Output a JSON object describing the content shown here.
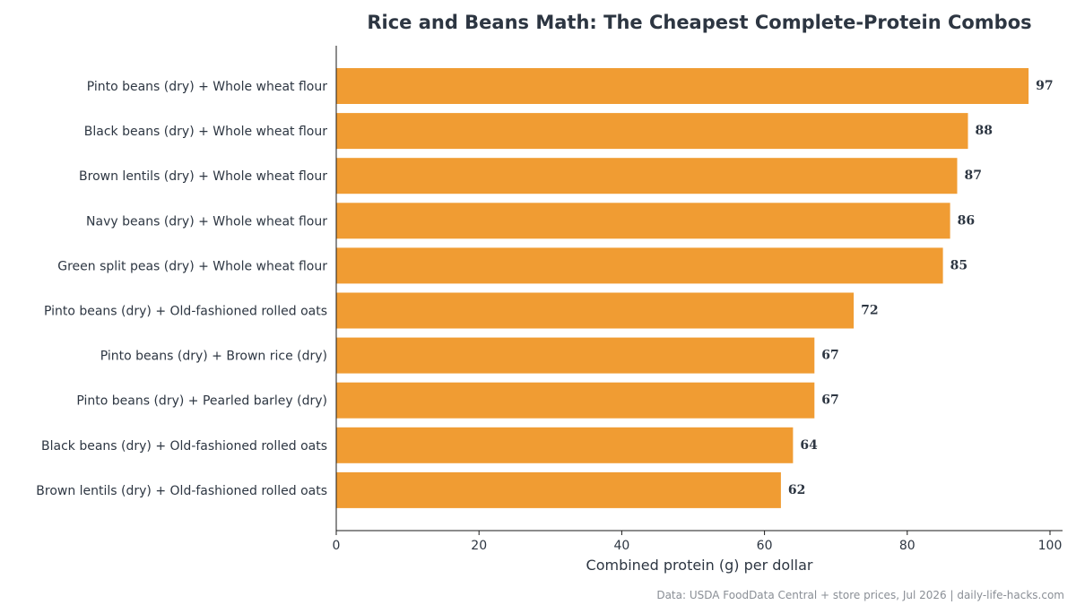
{
  "chart_data": {
    "type": "bar",
    "orientation": "horizontal",
    "title": "Rice and Beans Math: The Cheapest Complete-Protein Combos",
    "xlabel": "Combined protein (g) per dollar",
    "ylabel": "",
    "xlim": [
      0,
      100
    ],
    "x_ticks": [
      "0",
      "20",
      "40",
      "60",
      "80",
      "100"
    ],
    "grid": false,
    "legend": "none",
    "bar_color": "#f09c33",
    "categories": [
      "Pinto beans (dry) + Whole wheat flour",
      "Black beans (dry) + Whole wheat flour",
      "Brown lentils (dry) + Whole wheat flour",
      "Navy beans (dry) + Whole wheat flour",
      "Green split peas (dry) + Whole wheat flour",
      "Pinto beans (dry) + Old-fashioned rolled oats",
      "Pinto beans (dry) + Brown rice (dry)",
      "Pinto beans (dry) + Pearled barley (dry)",
      "Black beans (dry) + Old-fashioned rolled oats",
      "Brown lentils (dry) + Old-fashioned rolled oats"
    ],
    "values": [
      97,
      88.5,
      87,
      86,
      85,
      72.5,
      67,
      67,
      64,
      62.3
    ],
    "value_labels": [
      "97",
      "88",
      "87",
      "86",
      "85",
      "72",
      "67",
      "67",
      "64",
      "62"
    ],
    "source": "Data: USDA FoodData Central + store prices, Jul 2026 | daily-life-hacks.com"
  }
}
